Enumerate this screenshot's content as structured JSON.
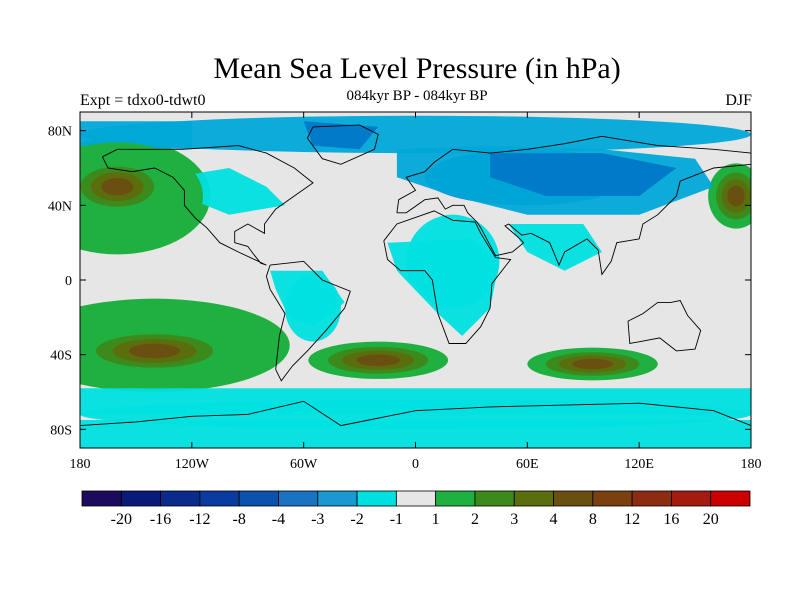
{
  "title": "Mean Sea Level Pressure (in hPa)",
  "subtitle": "084kyr BP - 084kyr BP",
  "experiment_label": "Expt = tdxo0-tdwt0",
  "season": "DJF",
  "colors": {
    "ocean_neutral": "#e6e6e6",
    "neg1": "#00e0e0",
    "neg2": "#00a8d8",
    "neg3": "#0078c8",
    "pos1": "#20b040",
    "pos2": "#3c8a1c",
    "pos3": "#5a6e0e",
    "pos4": "#6a5010",
    "coast": "#000000"
  },
  "map": {
    "projection": "cylindrical-equidistant",
    "lon_range": [
      -180,
      180
    ],
    "lat_range": [
      -90,
      90
    ],
    "x_ticks": [
      {
        "lon": -180,
        "label": "180"
      },
      {
        "lon": -120,
        "label": "120W"
      },
      {
        "lon": -60,
        "label": "60W"
      },
      {
        "lon": 0,
        "label": "0"
      },
      {
        "lon": 60,
        "label": "60E"
      },
      {
        "lon": 120,
        "label": "120E"
      },
      {
        "lon": 180,
        "label": "180"
      }
    ],
    "y_ticks": [
      {
        "lat": 80,
        "label": "80N"
      },
      {
        "lat": 40,
        "label": "40N"
      },
      {
        "lat": 0,
        "label": "0"
      },
      {
        "lat": -40,
        "label": "40S"
      },
      {
        "lat": -80,
        "label": "80S"
      }
    ],
    "fields": [
      {
        "name": "north-pacific-high",
        "level": 4,
        "lon": -160,
        "lat": 50,
        "rlon": 22,
        "rlat": 12
      },
      {
        "name": "north-pacific-high-outer",
        "level": 1,
        "lon": -160,
        "lat": 45,
        "rlon": 40,
        "rlat": 25
      },
      {
        "name": "west-pacific-high",
        "level": 4,
        "lon": 172,
        "lat": 45,
        "rlon": 12,
        "rlat": 14
      },
      {
        "name": "south-pacific-high",
        "level": 4,
        "lon": -140,
        "lat": -38,
        "rlon": 35,
        "rlat": 10
      },
      {
        "name": "south-pacific-high-outer",
        "level": 1,
        "lon": -140,
        "lat": -35,
        "rlon": 58,
        "rlat": 20
      },
      {
        "name": "south-atlantic-high",
        "level": 4,
        "lon": -20,
        "lat": -43,
        "rlon": 30,
        "rlat": 8
      },
      {
        "name": "indian-ocean-high",
        "level": 4,
        "lon": 95,
        "lat": -45,
        "rlon": 28,
        "rlat": 7
      },
      {
        "name": "east-asia-low",
        "level": 3,
        "lon": 60,
        "lat": 55,
        "rlon": 55,
        "rlat": 15
      },
      {
        "name": "arctic-low",
        "level": 2,
        "lon": 0,
        "lat": 78,
        "rlon": 180,
        "rlat": 10
      },
      {
        "name": "africa-low",
        "level": 1,
        "lon": 20,
        "lat": 10,
        "rlon": 25,
        "rlat": 25
      },
      {
        "name": "south-america-low",
        "level": 1,
        "lon": -55,
        "lat": -15,
        "rlon": 15,
        "rlat": 18
      },
      {
        "name": "southern-ocean-ring",
        "level": 1,
        "lon": 0,
        "lat": -72,
        "rlon": 180,
        "rlat": 8
      }
    ]
  },
  "colorbar": {
    "colors": [
      "#1c0a5c",
      "#0a1a78",
      "#0a2a8c",
      "#0a3ca0",
      "#0a52ae",
      "#1a72c2",
      "#1a98d0",
      "#00e0e0",
      "#e6e6e6",
      "#20b040",
      "#3c8a1c",
      "#5a6e0e",
      "#6a5010",
      "#7a4010",
      "#8c2c10",
      "#a41c10",
      "#cc0000"
    ],
    "labels": [
      "-20",
      "-16",
      "-12",
      "-8",
      "-4",
      "-3",
      "-2",
      "-1",
      "1",
      "2",
      "3",
      "4",
      "8",
      "12",
      "16",
      "20"
    ]
  }
}
